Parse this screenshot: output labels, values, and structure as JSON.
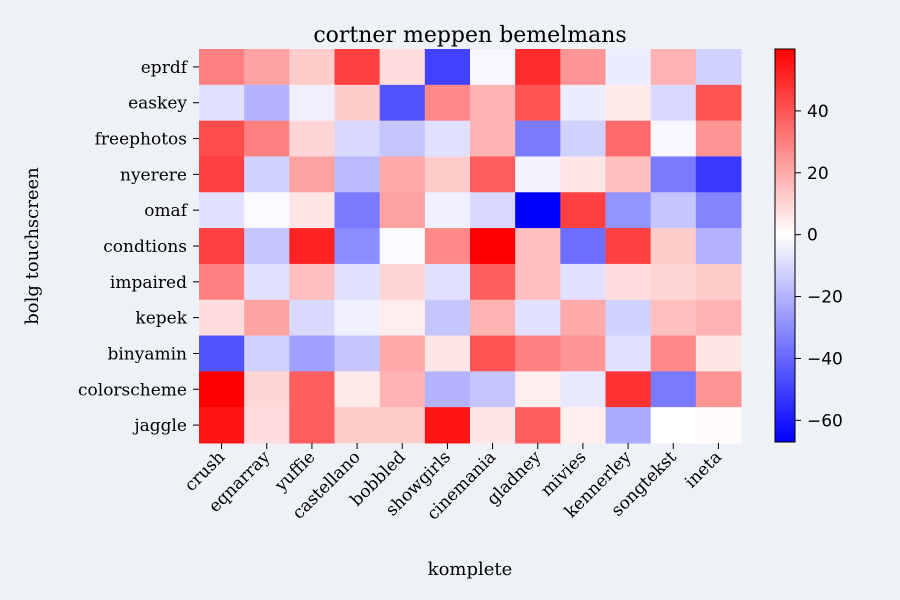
{
  "chart_data": {
    "type": "heatmap",
    "title": "cortner meppen bemelmans",
    "xlabel": "komplete",
    "ylabel": "bolg touchscreen",
    "x_categories": [
      "crush",
      "eqnarray",
      "yuffie",
      "castellano",
      "bobbled",
      "showgirls",
      "cinemania",
      "gladney",
      "mivies",
      "kennerley",
      "songtekst",
      "ineta"
    ],
    "y_categories": [
      "eprdf",
      "easkey",
      "freephotos",
      "nyerere",
      "omaf",
      "condtions",
      "impaired",
      "kepek",
      "binyamin",
      "colorscheme",
      "jaggle"
    ],
    "values": [
      [
        30,
        22,
        12,
        45,
        8,
        -50,
        -2,
        50,
        25,
        -5,
        18,
        -12
      ],
      [
        -8,
        -20,
        -4,
        12,
        -45,
        28,
        18,
        40,
        -5,
        5,
        -10,
        40
      ],
      [
        42,
        30,
        10,
        -10,
        -15,
        -8,
        18,
        -35,
        -12,
        35,
        -2,
        25
      ],
      [
        45,
        -12,
        22,
        -18,
        20,
        12,
        38,
        -3,
        6,
        15,
        -35,
        -52
      ],
      [
        -8,
        -1,
        6,
        -35,
        22,
        -4,
        -10,
        -67,
        45,
        -28,
        -15,
        -32
      ],
      [
        45,
        -15,
        52,
        -30,
        -1,
        28,
        60,
        15,
        -38,
        45,
        12,
        -20
      ],
      [
        30,
        -8,
        15,
        -8,
        10,
        -8,
        38,
        15,
        -8,
        8,
        10,
        12
      ],
      [
        8,
        22,
        -10,
        -4,
        4,
        -15,
        18,
        -8,
        20,
        -12,
        15,
        18
      ],
      [
        -45,
        -12,
        -25,
        -15,
        20,
        6,
        40,
        30,
        25,
        -8,
        28,
        6
      ],
      [
        60,
        10,
        38,
        5,
        18,
        -20,
        -15,
        4,
        -6,
        48,
        -35,
        25
      ],
      [
        55,
        8,
        38,
        12,
        12,
        55,
        6,
        38,
        4,
        -22,
        0,
        1
      ]
    ],
    "colorbar": {
      "colormap": "bwr",
      "vmin": -67,
      "vmax": 60,
      "ticks": [
        -60,
        -40,
        -20,
        0,
        20,
        40
      ],
      "tick_labels": [
        "−60",
        "−40",
        "−20",
        "0",
        "20",
        "40"
      ]
    },
    "colors": {
      "background": "#eef1f6",
      "low": "#0000ff",
      "mid": "#ffffff",
      "high": "#ff0000"
    }
  }
}
